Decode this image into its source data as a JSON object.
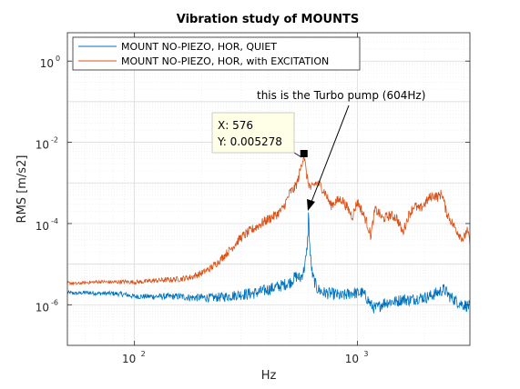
{
  "chart_data": {
    "type": "line",
    "title": "Vibration study of MOUNTS",
    "xlabel": "Hz",
    "ylabel": "RMS [m/s2]",
    "xscale": "log",
    "yscale": "log",
    "xlim": [
      50,
      3200
    ],
    "ylim": [
      1e-07,
      5
    ],
    "grid": true,
    "minor_grid": true,
    "legend_position": "top-left",
    "x_ticks": [
      {
        "value": 100,
        "base": "10",
        "exp": "2"
      },
      {
        "value": 1000,
        "base": "10",
        "exp": "3"
      }
    ],
    "y_ticks": [
      {
        "value": 1e-06,
        "base": "10",
        "exp": "-6"
      },
      {
        "value": 0.0001,
        "base": "10",
        "exp": "-4"
      },
      {
        "value": 0.01,
        "base": "10",
        "exp": "-2"
      },
      {
        "value": 1,
        "base": "10",
        "exp": "0"
      }
    ],
    "series": [
      {
        "name": "MOUNT NO-PIEZO, HOR, QUIET",
        "color": "#0072BD",
        "noise": 0.3,
        "points": [
          [
            50,
            2e-06
          ],
          [
            55,
            1.9e-06
          ],
          [
            60,
            2e-06
          ],
          [
            70,
            1.9e-06
          ],
          [
            80,
            1.9e-06
          ],
          [
            90,
            1.8e-06
          ],
          [
            100,
            1.6e-06
          ],
          [
            110,
            1.6e-06
          ],
          [
            120,
            1.6e-06
          ],
          [
            140,
            1.6e-06
          ],
          [
            160,
            1.6e-06
          ],
          [
            180,
            1.5e-06
          ],
          [
            200,
            1.5e-06
          ],
          [
            230,
            1.5e-06
          ],
          [
            260,
            1.6e-06
          ],
          [
            300,
            1.8e-06
          ],
          [
            340,
            1.9e-06
          ],
          [
            380,
            2.2e-06
          ],
          [
            420,
            2.6e-06
          ],
          [
            460,
            3e-06
          ],
          [
            500,
            3.6e-06
          ],
          [
            530,
            5e-06
          ],
          [
            555,
            4.5e-06
          ],
          [
            575,
            7e-06
          ],
          [
            590,
            1.5e-05
          ],
          [
            600,
            5e-05
          ],
          [
            604,
            0.0002
          ],
          [
            608,
            6e-05
          ],
          [
            615,
            1.6e-05
          ],
          [
            630,
            5e-06
          ],
          [
            660,
            2.5e-06
          ],
          [
            700,
            2e-06
          ],
          [
            750,
            1.9e-06
          ],
          [
            800,
            1.8e-06
          ],
          [
            850,
            1.6e-06
          ],
          [
            900,
            1.8e-06
          ],
          [
            950,
            2e-06
          ],
          [
            1000,
            1.9e-06
          ],
          [
            1050,
            2e-06
          ],
          [
            1100,
            1.5e-06
          ],
          [
            1150,
            1e-06
          ],
          [
            1200,
            8e-07
          ],
          [
            1250,
            9e-07
          ],
          [
            1300,
            1.1e-06
          ],
          [
            1400,
            1.2e-06
          ],
          [
            1500,
            1.2e-06
          ],
          [
            1600,
            1.4e-06
          ],
          [
            1700,
            1.3e-06
          ],
          [
            1800,
            1.4e-06
          ],
          [
            1900,
            1.5e-06
          ],
          [
            2000,
            1.5e-06
          ],
          [
            2100,
            1.6e-06
          ],
          [
            2200,
            1.8e-06
          ],
          [
            2300,
            2e-06
          ],
          [
            2450,
            2.4e-06
          ],
          [
            2600,
            1.6e-06
          ],
          [
            2800,
            1.2e-06
          ],
          [
            3000,
            1e-06
          ],
          [
            3200,
            9e-07
          ]
        ]
      },
      {
        "name": "MOUNT NO-PIEZO, HOR, with EXCITATION",
        "color": "#D95319",
        "noise": 0.25,
        "points": [
          [
            50,
            3.5e-06
          ],
          [
            55,
            3.3e-06
          ],
          [
            60,
            3.5e-06
          ],
          [
            70,
            3.7e-06
          ],
          [
            80,
            3.6e-06
          ],
          [
            90,
            3.7e-06
          ],
          [
            100,
            3.6e-06
          ],
          [
            110,
            3.7e-06
          ],
          [
            120,
            3.9e-06
          ],
          [
            140,
            4.1e-06
          ],
          [
            160,
            4.3e-06
          ],
          [
            180,
            4.8e-06
          ],
          [
            200,
            6e-06
          ],
          [
            220,
            8e-06
          ],
          [
            240,
            1.2e-05
          ],
          [
            260,
            1.9e-05
          ],
          [
            280,
            2.9e-05
          ],
          [
            300,
            4.5e-05
          ],
          [
            330,
            6.5e-05
          ],
          [
            360,
            9e-05
          ],
          [
            400,
            0.00013
          ],
          [
            430,
            0.00016
          ],
          [
            460,
            0.00022
          ],
          [
            480,
            0.00035
          ],
          [
            500,
            0.0006
          ],
          [
            520,
            0.0007
          ],
          [
            540,
            0.0011
          ],
          [
            560,
            0.0026
          ],
          [
            576,
            0.0053
          ],
          [
            590,
            0.0017
          ],
          [
            604,
            0.001
          ],
          [
            620,
            0.0007
          ],
          [
            650,
            0.001
          ],
          [
            680,
            0.0009
          ],
          [
            720,
            0.00055
          ],
          [
            760,
            0.00028
          ],
          [
            800,
            0.00035
          ],
          [
            850,
            0.0004
          ],
          [
            900,
            0.00025
          ],
          [
            950,
            0.00015
          ],
          [
            1000,
            0.00035
          ],
          [
            1050,
            0.0002
          ],
          [
            1100,
            0.00011
          ],
          [
            1150,
            5e-05
          ],
          [
            1200,
            0.00022
          ],
          [
            1250,
            0.00018
          ],
          [
            1300,
            0.00013
          ],
          [
            1400,
            0.00016
          ],
          [
            1500,
            0.00014
          ],
          [
            1600,
            6e-05
          ],
          [
            1700,
            0.00016
          ],
          [
            1800,
            0.00028
          ],
          [
            1900,
            0.00022
          ],
          [
            2000,
            0.0003
          ],
          [
            2100,
            0.00042
          ],
          [
            2200,
            0.0005
          ],
          [
            2300,
            0.00045
          ],
          [
            2400,
            0.00056
          ],
          [
            2500,
            0.0002
          ],
          [
            2700,
            9e-05
          ],
          [
            2900,
            5e-05
          ],
          [
            3000,
            4e-05
          ],
          [
            3100,
            7e-05
          ],
          [
            3200,
            3.5e-05
          ]
        ]
      }
    ],
    "datatip": {
      "x_text": "X: 576",
      "y_text": "Y: 0.005278",
      "x": 576,
      "y": 0.005278
    },
    "annotation": {
      "text": "this is the Turbo pump (604Hz)",
      "target_x": 604,
      "target_y": 0.00022
    }
  }
}
